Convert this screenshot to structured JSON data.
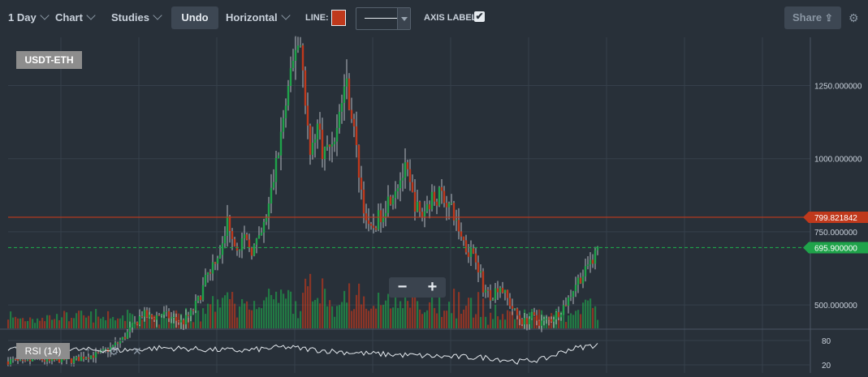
{
  "toolbar": {
    "period": "1 Day",
    "chart": "Chart",
    "studies": "Studies",
    "undo": "Undo",
    "drawing": "Horizontal",
    "line_label": "LINE:",
    "line_color": "#c0391c",
    "axis_label": "AXIS LABEL:",
    "axis_label_checked": "✔",
    "share": "Share",
    "share_icon": "share-icon",
    "settings_icon": "gear-icon"
  },
  "symbol": "USDT-ETH",
  "zoom": {
    "minus": "−",
    "plus": "+"
  },
  "rsi": {
    "label": "RSI (14)",
    "levels": [
      "80",
      "20"
    ]
  },
  "colors": {
    "up": "#1fa34a",
    "down": "#c0391c",
    "grid": "#36404b",
    "bg": "#283039",
    "text": "#c9d1db"
  },
  "chart_data": {
    "type": "candlestick",
    "y_ticks": [
      "1250.000000",
      "1000.000000",
      "750.000000",
      "500.000000"
    ],
    "y_tick_values": [
      1250,
      1000,
      750,
      500
    ],
    "ylim": [
      420,
      1415
    ],
    "annotations": [
      {
        "label": "799.821842",
        "value": 799.821842,
        "color": "#c0391c",
        "style": "solid"
      },
      {
        "label": "695.900000",
        "value": 695.9,
        "color": "#1fa34a",
        "style": "dashed"
      }
    ],
    "path": [
      [
        0,
        300
      ],
      [
        15,
        310
      ],
      [
        30,
        300
      ],
      [
        45,
        320
      ],
      [
        60,
        305
      ],
      [
        75,
        315
      ],
      [
        90,
        310
      ],
      [
        105,
        325
      ],
      [
        120,
        330
      ],
      [
        135,
        350
      ],
      [
        150,
        380
      ],
      [
        165,
        430
      ],
      [
        175,
        470
      ],
      [
        185,
        455
      ],
      [
        200,
        470
      ],
      [
        215,
        450
      ],
      [
        225,
        440
      ],
      [
        235,
        470
      ],
      [
        245,
        520
      ],
      [
        255,
        600
      ],
      [
        265,
        660
      ],
      [
        275,
        700
      ],
      [
        280,
        790
      ],
      [
        285,
        760
      ],
      [
        290,
        700
      ],
      [
        300,
        720
      ],
      [
        310,
        690
      ],
      [
        320,
        720
      ],
      [
        330,
        820
      ],
      [
        340,
        980
      ],
      [
        350,
        1150
      ],
      [
        360,
        1300
      ],
      [
        365,
        1410
      ],
      [
        370,
        1390
      ],
      [
        375,
        1250
      ],
      [
        382,
        1000
      ],
      [
        390,
        1130
      ],
      [
        398,
        1020
      ],
      [
        405,
        1040
      ],
      [
        415,
        1100
      ],
      [
        425,
        1270
      ],
      [
        432,
        1180
      ],
      [
        440,
        1000
      ],
      [
        447,
        850
      ],
      [
        455,
        740
      ],
      [
        465,
        790
      ],
      [
        480,
        870
      ],
      [
        490,
        920
      ],
      [
        500,
        960
      ],
      [
        508,
        870
      ],
      [
        518,
        800
      ],
      [
        530,
        860
      ],
      [
        545,
        880
      ],
      [
        555,
        830
      ],
      [
        565,
        760
      ],
      [
        575,
        690
      ],
      [
        585,
        680
      ],
      [
        595,
        560
      ],
      [
        605,
        530
      ],
      [
        615,
        570
      ],
      [
        625,
        520
      ],
      [
        635,
        470
      ],
      [
        645,
        440
      ],
      [
        655,
        460
      ],
      [
        665,
        440
      ],
      [
        678,
        450
      ],
      [
        690,
        480
      ],
      [
        700,
        520
      ],
      [
        710,
        580
      ],
      [
        720,
        610
      ],
      [
        730,
        660
      ],
      [
        737,
        695.9
      ]
    ],
    "rsi_path": [
      [
        10,
        60
      ],
      [
        50,
        58
      ],
      [
        100,
        57
      ],
      [
        150,
        56
      ],
      [
        200,
        62
      ],
      [
        250,
        58
      ],
      [
        300,
        55
      ],
      [
        350,
        64
      ],
      [
        400,
        55
      ],
      [
        450,
        48
      ],
      [
        500,
        44
      ],
      [
        550,
        40
      ],
      [
        600,
        38
      ],
      [
        640,
        28
      ],
      [
        670,
        34
      ],
      [
        700,
        58
      ],
      [
        737,
        70
      ]
    ]
  }
}
